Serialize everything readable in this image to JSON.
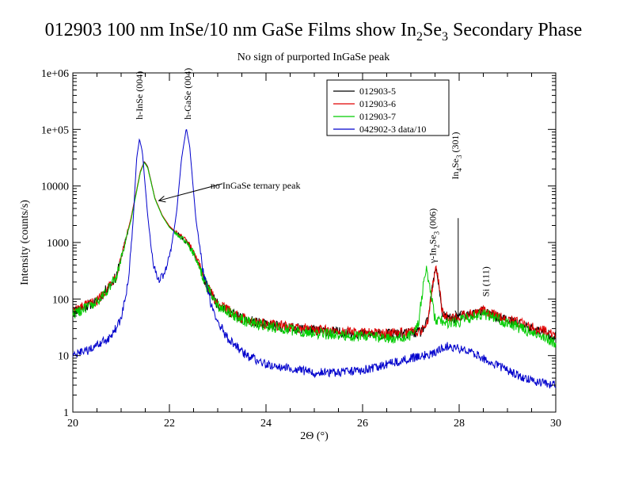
{
  "chart_data": {
    "type": "line",
    "title": {
      "pre": "012903 100 nm InSe/10 nm GaSe Films show In",
      "sub1": "2",
      "mid": "Se",
      "sub2": "3",
      "post": " Secondary Phase"
    },
    "subtitle": "No sign of purported InGaSe peak",
    "xlabel": "2Θ (°)",
    "ylabel": "Intensity (counts/s)",
    "xlim": [
      20,
      30
    ],
    "ylim": [
      1,
      1000000
    ],
    "yscale": "log",
    "x_ticks": [
      {
        "value": 20,
        "label": "20"
      },
      {
        "value": 22,
        "label": "22"
      },
      {
        "value": 24,
        "label": "24"
      },
      {
        "value": 26,
        "label": "26"
      },
      {
        "value": 28,
        "label": "28"
      },
      {
        "value": 30,
        "label": "30"
      }
    ],
    "y_ticks": [
      {
        "value": 1,
        "label": "1"
      },
      {
        "value": 10,
        "label": "10"
      },
      {
        "value": 100,
        "label": "100"
      },
      {
        "value": 1000,
        "label": "1000"
      },
      {
        "value": 10000,
        "label": "10000"
      },
      {
        "value": 100000,
        "label": "1e+05"
      },
      {
        "value": 1000000,
        "label": "1e+06"
      }
    ],
    "grid": false,
    "legend_position": "top-right",
    "series": [
      {
        "name": "012903-5",
        "color": "#000000",
        "points": [
          [
            20.0,
            60
          ],
          [
            20.5,
            90
          ],
          [
            20.9,
            250
          ],
          [
            21.2,
            2500
          ],
          [
            21.4,
            18000
          ],
          [
            21.48,
            27000
          ],
          [
            21.55,
            22000
          ],
          [
            21.7,
            6000
          ],
          [
            21.85,
            3000
          ],
          [
            22.0,
            1900
          ],
          [
            22.15,
            1450
          ],
          [
            22.3,
            1150
          ],
          [
            22.45,
            800
          ],
          [
            22.6,
            420
          ],
          [
            22.8,
            150
          ],
          [
            23.0,
            80
          ],
          [
            23.5,
            45
          ],
          [
            24.0,
            35
          ],
          [
            25.0,
            28
          ],
          [
            26.0,
            24
          ],
          [
            26.8,
            24
          ],
          [
            27.2,
            26
          ],
          [
            27.35,
            40
          ],
          [
            27.45,
            170
          ],
          [
            27.52,
            350
          ],
          [
            27.58,
            180
          ],
          [
            27.65,
            55
          ],
          [
            27.8,
            45
          ],
          [
            28.0,
            48
          ],
          [
            28.3,
            55
          ],
          [
            28.5,
            60
          ],
          [
            28.8,
            48
          ],
          [
            29.2,
            38
          ],
          [
            29.6,
            28
          ],
          [
            30.0,
            22
          ]
        ]
      },
      {
        "name": "012903-6",
        "color": "#e00000",
        "points": [
          [
            20.0,
            62
          ],
          [
            20.5,
            92
          ],
          [
            20.9,
            260
          ],
          [
            21.2,
            2600
          ],
          [
            21.4,
            18500
          ],
          [
            21.48,
            26500
          ],
          [
            21.55,
            21500
          ],
          [
            21.7,
            6100
          ],
          [
            21.85,
            3050
          ],
          [
            22.0,
            1950
          ],
          [
            22.15,
            1480
          ],
          [
            22.3,
            1180
          ],
          [
            22.45,
            820
          ],
          [
            22.6,
            430
          ],
          [
            22.8,
            155
          ],
          [
            23.0,
            82
          ],
          [
            23.5,
            46
          ],
          [
            24.0,
            36
          ],
          [
            25.0,
            29
          ],
          [
            26.0,
            25
          ],
          [
            26.8,
            25
          ],
          [
            27.2,
            27
          ],
          [
            27.35,
            42
          ],
          [
            27.45,
            180
          ],
          [
            27.52,
            380
          ],
          [
            27.58,
            190
          ],
          [
            27.65,
            58
          ],
          [
            27.8,
            47
          ],
          [
            28.0,
            50
          ],
          [
            28.3,
            56
          ],
          [
            28.5,
            62
          ],
          [
            28.8,
            50
          ],
          [
            29.2,
            40
          ],
          [
            29.6,
            30
          ],
          [
            30.0,
            24
          ]
        ]
      },
      {
        "name": "012903-7",
        "color": "#00cc00",
        "points": [
          [
            20.0,
            55
          ],
          [
            20.5,
            85
          ],
          [
            20.9,
            240
          ],
          [
            21.2,
            2400
          ],
          [
            21.4,
            17500
          ],
          [
            21.48,
            26000
          ],
          [
            21.55,
            21000
          ],
          [
            21.7,
            5900
          ],
          [
            21.85,
            2950
          ],
          [
            22.0,
            1850
          ],
          [
            22.15,
            1420
          ],
          [
            22.3,
            1120
          ],
          [
            22.45,
            780
          ],
          [
            22.6,
            410
          ],
          [
            22.8,
            148
          ],
          [
            23.0,
            78
          ],
          [
            23.5,
            43
          ],
          [
            24.0,
            33
          ],
          [
            25.0,
            25
          ],
          [
            26.0,
            22
          ],
          [
            26.6,
            20
          ],
          [
            27.0,
            22
          ],
          [
            27.15,
            35
          ],
          [
            27.25,
            150
          ],
          [
            27.32,
            370
          ],
          [
            27.4,
            140
          ],
          [
            27.5,
            45
          ],
          [
            27.7,
            38
          ],
          [
            28.0,
            40
          ],
          [
            28.3,
            50
          ],
          [
            28.5,
            55
          ],
          [
            28.8,
            45
          ],
          [
            29.2,
            32
          ],
          [
            29.6,
            24
          ],
          [
            30.0,
            17
          ]
        ]
      },
      {
        "name": "042902-3 data/10",
        "color": "#0000cc",
        "points": [
          [
            20.0,
            10
          ],
          [
            20.4,
            13
          ],
          [
            20.8,
            22
          ],
          [
            21.0,
            45
          ],
          [
            21.15,
            200
          ],
          [
            21.25,
            2500
          ],
          [
            21.32,
            30000
          ],
          [
            21.38,
            68000
          ],
          [
            21.44,
            40000
          ],
          [
            21.55,
            3000
          ],
          [
            21.65,
            500
          ],
          [
            21.75,
            220
          ],
          [
            21.85,
            240
          ],
          [
            21.95,
            400
          ],
          [
            22.05,
            900
          ],
          [
            22.15,
            3500
          ],
          [
            22.25,
            30000
          ],
          [
            22.35,
            105000
          ],
          [
            22.42,
            50000
          ],
          [
            22.55,
            2500
          ],
          [
            22.7,
            300
          ],
          [
            22.9,
            60
          ],
          [
            23.2,
            20
          ],
          [
            23.6,
            10
          ],
          [
            24.0,
            7
          ],
          [
            24.5,
            6
          ],
          [
            25.0,
            5
          ],
          [
            25.5,
            5
          ],
          [
            26.0,
            5.5
          ],
          [
            26.5,
            7
          ],
          [
            27.0,
            9
          ],
          [
            27.5,
            11
          ],
          [
            27.75,
            15
          ],
          [
            28.0,
            13
          ],
          [
            28.3,
            11
          ],
          [
            28.6,
            8
          ],
          [
            29.0,
            5.5
          ],
          [
            29.5,
            3.5
          ],
          [
            30.0,
            3
          ]
        ]
      }
    ],
    "annotations": [
      {
        "text": "h-InSe (004)",
        "x": 21.38,
        "y": 150000,
        "rotate": -90
      },
      {
        "text": "h-GaSe (004)",
        "x": 22.38,
        "y": 150000,
        "rotate": -90
      },
      {
        "text": "no InGaSe ternary peak",
        "x": 22.85,
        "y": 9000,
        "rotate": 0
      },
      {
        "text": "Si (111)",
        "x": 28.55,
        "y": 110,
        "rotate": -90
      }
    ],
    "rich_annotations": [
      {
        "x": 27.52,
        "y": 430,
        "parts": {
          "pre": "γ-In",
          "sub1": "2",
          "mid": "Se",
          "sub2": "3",
          "post": " (006)"
        }
      },
      {
        "x": 27.98,
        "y": 13000,
        "parts": {
          "pre": "In",
          "sub1": "4",
          "mid": "Se",
          "sub2": "3",
          "post": " (301)"
        }
      }
    ],
    "arrows": [
      {
        "from": [
          23.1,
          11000
        ],
        "to": [
          21.78,
          5500
        ]
      },
      {
        "from": [
          27.98,
          2700
        ],
        "to": [
          27.98,
          48
        ]
      }
    ]
  }
}
